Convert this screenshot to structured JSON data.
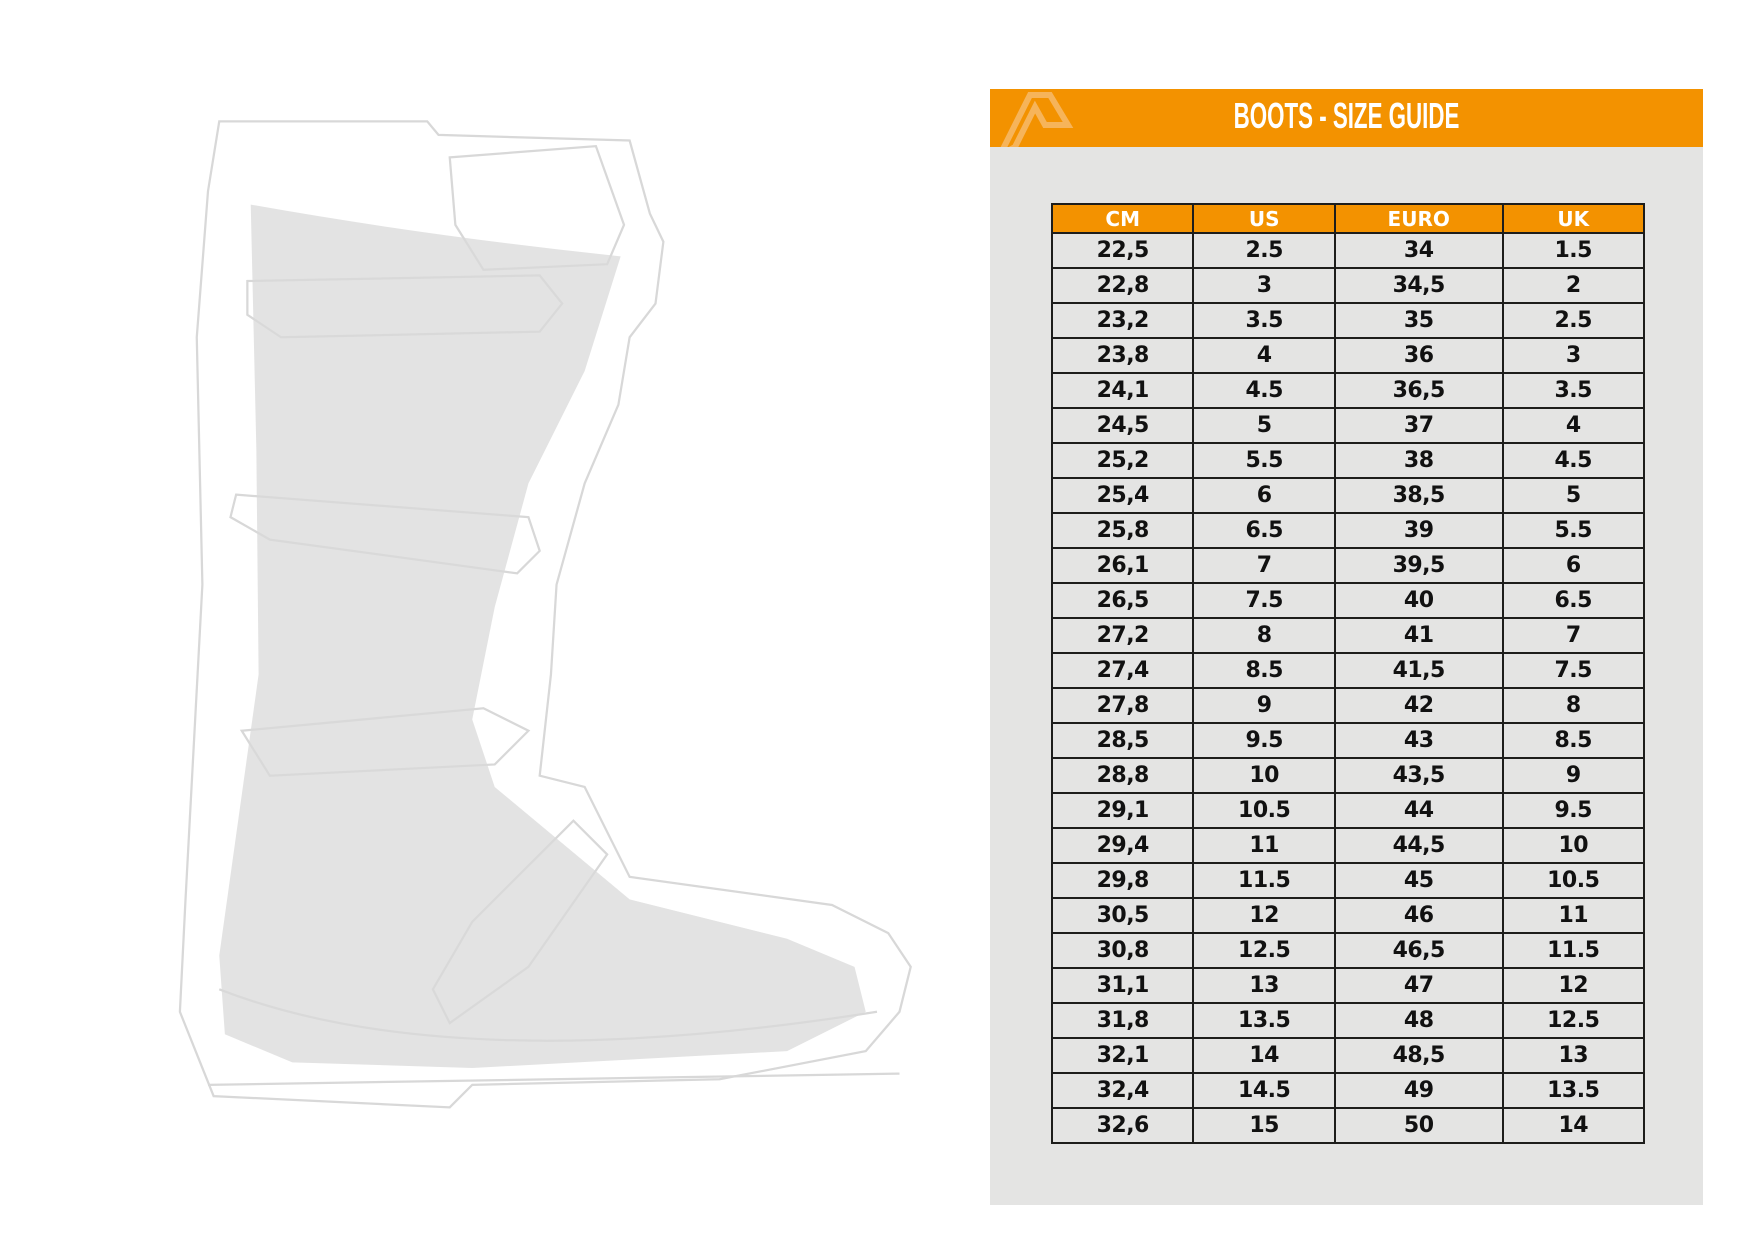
{
  "title": "BOOTS - SIZE GUIDE",
  "colors": {
    "accent": "#f39200",
    "panel": "#e4e4e3",
    "border": "#1d1d1b"
  },
  "illustration": "boot-outline",
  "table": {
    "headers": [
      "CM",
      "US",
      "EURO",
      "UK"
    ],
    "rows": [
      [
        "22,5",
        "2.5",
        "34",
        "1.5"
      ],
      [
        "22,8",
        "3",
        "34,5",
        "2"
      ],
      [
        "23,2",
        "3.5",
        "35",
        "2.5"
      ],
      [
        "23,8",
        "4",
        "36",
        "3"
      ],
      [
        "24,1",
        "4.5",
        "36,5",
        "3.5"
      ],
      [
        "24,5",
        "5",
        "37",
        "4"
      ],
      [
        "25,2",
        "5.5",
        "38",
        "4.5"
      ],
      [
        "25,4",
        "6",
        "38,5",
        "5"
      ],
      [
        "25,8",
        "6.5",
        "39",
        "5.5"
      ],
      [
        "26,1",
        "7",
        "39,5",
        "6"
      ],
      [
        "26,5",
        "7.5",
        "40",
        "6.5"
      ],
      [
        "27,2",
        "8",
        "41",
        "7"
      ],
      [
        "27,4",
        "8.5",
        "41,5",
        "7.5"
      ],
      [
        "27,8",
        "9",
        "42",
        "8"
      ],
      [
        "28,5",
        "9.5",
        "43",
        "8.5"
      ],
      [
        "28,8",
        "10",
        "43,5",
        "9"
      ],
      [
        "29,1",
        "10.5",
        "44",
        "9.5"
      ],
      [
        "29,4",
        "11",
        "44,5",
        "10"
      ],
      [
        "29,8",
        "11.5",
        "45",
        "10.5"
      ],
      [
        "30,5",
        "12",
        "46",
        "11"
      ],
      [
        "30,8",
        "12.5",
        "46,5",
        "11.5"
      ],
      [
        "31,1",
        "13",
        "47",
        "12"
      ],
      [
        "31,8",
        "13.5",
        "48",
        "12.5"
      ],
      [
        "32,1",
        "14",
        "48,5",
        "13"
      ],
      [
        "32,4",
        "14.5",
        "49",
        "13.5"
      ],
      [
        "32,6",
        "15",
        "50",
        "14"
      ]
    ]
  }
}
